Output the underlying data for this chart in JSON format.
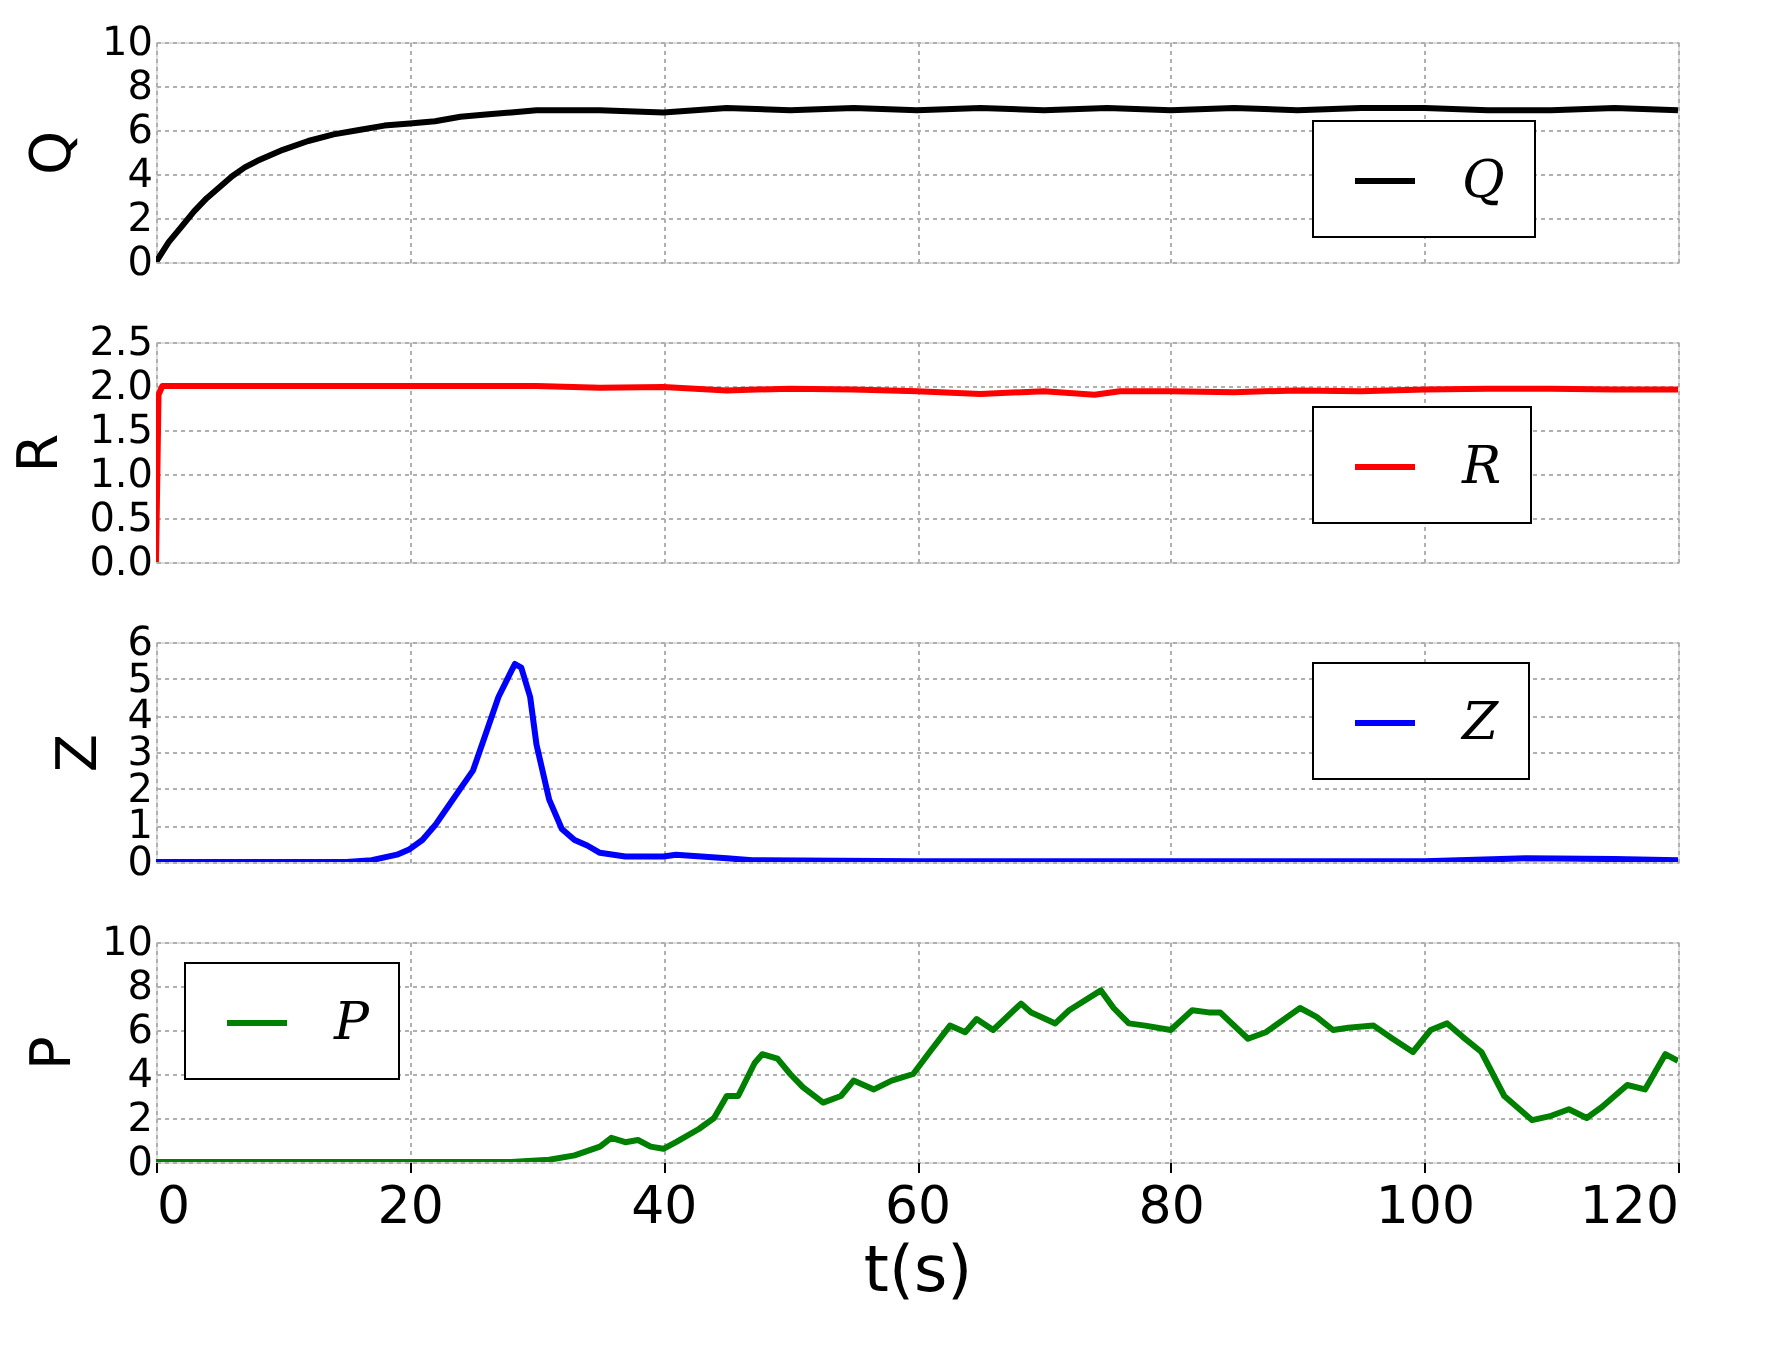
{
  "chart_data": [
    {
      "type": "line",
      "ylabel": "Q",
      "xlim": [
        0,
        120
      ],
      "xticks": [
        0,
        20,
        40,
        60,
        80,
        100,
        120
      ],
      "ylim": [
        0,
        10
      ],
      "yticks": [
        0,
        2,
        4,
        6,
        8,
        10
      ],
      "grid": true,
      "legend": "right",
      "tick_labels": "y",
      "series": [
        {
          "name": "Q",
          "color": "#000000",
          "x": [
            0,
            1,
            2,
            3,
            4,
            5,
            6,
            7,
            8,
            10,
            12,
            14,
            16,
            18,
            20,
            22,
            24,
            26,
            28,
            30,
            35,
            40,
            45,
            50,
            55,
            60,
            65,
            70,
            75,
            80,
            85,
            90,
            95,
            100,
            105,
            110,
            115,
            120
          ],
          "values": [
            0,
            0.9,
            1.6,
            2.3,
            2.9,
            3.4,
            3.9,
            4.3,
            4.6,
            5.1,
            5.5,
            5.8,
            6.0,
            6.2,
            6.3,
            6.4,
            6.6,
            6.7,
            6.8,
            6.9,
            6.9,
            6.8,
            7.0,
            6.9,
            7.0,
            6.9,
            7.0,
            6.9,
            7.0,
            6.9,
            7.0,
            6.9,
            7.0,
            7.0,
            6.9,
            6.9,
            7.0,
            6.9
          ]
        }
      ]
    },
    {
      "type": "line",
      "ylabel": "R",
      "xlim": [
        0,
        120
      ],
      "xticks": [
        0,
        20,
        40,
        60,
        80,
        100,
        120
      ],
      "ylim": [
        0,
        2.5
      ],
      "yticks": [
        {
          "value": 0,
          "label": "0.0"
        },
        {
          "value": 0.5,
          "label": "0.5"
        },
        {
          "value": 1,
          "label": "1.0"
        },
        {
          "value": 1.5,
          "label": "1.5"
        },
        {
          "value": 2,
          "label": "2.0"
        },
        {
          "value": 2.5,
          "label": "2.5"
        }
      ],
      "grid": true,
      "legend": "bottom right",
      "tick_labels": "y",
      "series": [
        {
          "name": "R",
          "color": "#ff0000",
          "x": [
            0,
            0.2,
            0.5,
            10,
            20,
            30,
            35,
            40,
            45,
            50,
            55,
            60,
            65,
            70,
            74,
            76,
            80,
            85,
            90,
            95,
            100,
            105,
            110,
            115,
            120
          ],
          "values": [
            0,
            1.9,
            2.0,
            2.0,
            2.0,
            2.0,
            1.98,
            1.99,
            1.95,
            1.97,
            1.96,
            1.94,
            1.91,
            1.94,
            1.9,
            1.94,
            1.94,
            1.93,
            1.95,
            1.94,
            1.96,
            1.97,
            1.97,
            1.96,
            1.96
          ]
        }
      ]
    },
    {
      "type": "line",
      "ylabel": "Z",
      "xlim": [
        0,
        120
      ],
      "xticks": [
        0,
        20,
        40,
        60,
        80,
        100,
        120
      ],
      "ylim": [
        0,
        6
      ],
      "yticks": [
        0,
        1,
        2,
        3,
        4,
        5,
        6
      ],
      "grid": true,
      "legend": "top right",
      "tick_labels": "y",
      "series": [
        {
          "name": "Z",
          "color": "#0000ff",
          "x": [
            0,
            15,
            17,
            19,
            20,
            21,
            22,
            23,
            24,
            25,
            26,
            27,
            28,
            28.3,
            28.8,
            29.5,
            30,
            31,
            32,
            33,
            34,
            35,
            37,
            40,
            41,
            43,
            45,
            47,
            60,
            100,
            108,
            115,
            120
          ],
          "values": [
            0,
            0,
            0.05,
            0.2,
            0.35,
            0.6,
            1.0,
            1.5,
            2.0,
            2.5,
            3.5,
            4.5,
            5.2,
            5.4,
            5.3,
            4.5,
            3.2,
            1.7,
            0.9,
            0.6,
            0.45,
            0.25,
            0.15,
            0.15,
            0.2,
            0.15,
            0.1,
            0.05,
            0.02,
            0.02,
            0.1,
            0.08,
            0.05
          ]
        }
      ]
    },
    {
      "type": "line",
      "ylabel": "P",
      "xlabel": "t(s)",
      "xlim": [
        0,
        120
      ],
      "xticks": [
        0,
        20,
        40,
        60,
        80,
        100,
        120
      ],
      "ylim": [
        0,
        10
      ],
      "yticks": [
        0,
        2,
        4,
        6,
        8,
        10
      ],
      "grid": true,
      "legend": "top left",
      "series": [
        {
          "name": "P",
          "color": "#008000",
          "x": [
            0,
            28,
            31,
            33,
            35,
            35.9,
            37,
            38,
            39,
            40,
            41,
            42.8,
            44,
            45,
            45.9,
            47.2,
            47.8,
            49,
            50,
            51,
            52.6,
            54,
            55,
            56.6,
            58,
            59.7,
            61,
            62.6,
            63.8,
            64.7,
            66,
            68.2,
            69,
            70.9,
            72,
            74.5,
            75.5,
            76.7,
            78,
            80,
            81.7,
            83,
            83.9,
            86.1,
            87.5,
            90.2,
            91.5,
            92.8,
            94,
            96,
            97.5,
            99.1,
            100.5,
            101.8,
            103,
            104.5,
            106.3,
            108.5,
            110,
            111.4,
            112.8,
            114,
            116,
            117.4,
            119,
            120
          ],
          "values": [
            0,
            0,
            0.1,
            0.3,
            0.7,
            1.1,
            0.9,
            1.0,
            0.7,
            0.6,
            0.9,
            1.5,
            2.0,
            3.0,
            3.0,
            4.5,
            4.9,
            4.7,
            4.0,
            3.4,
            2.7,
            3.0,
            3.7,
            3.3,
            3.7,
            4.0,
            5.0,
            6.2,
            5.9,
            6.5,
            6.0,
            7.2,
            6.8,
            6.3,
            6.9,
            7.8,
            7.0,
            6.3,
            6.2,
            6.0,
            6.9,
            6.8,
            6.8,
            5.6,
            5.9,
            7.0,
            6.6,
            6.0,
            6.1,
            6.2,
            5.6,
            5.0,
            6.0,
            6.3,
            5.7,
            5.0,
            3.0,
            1.9,
            2.1,
            2.4,
            2.0,
            2.5,
            3.5,
            3.3,
            4.9,
            4.6
          ]
        }
      ]
    }
  ]
}
